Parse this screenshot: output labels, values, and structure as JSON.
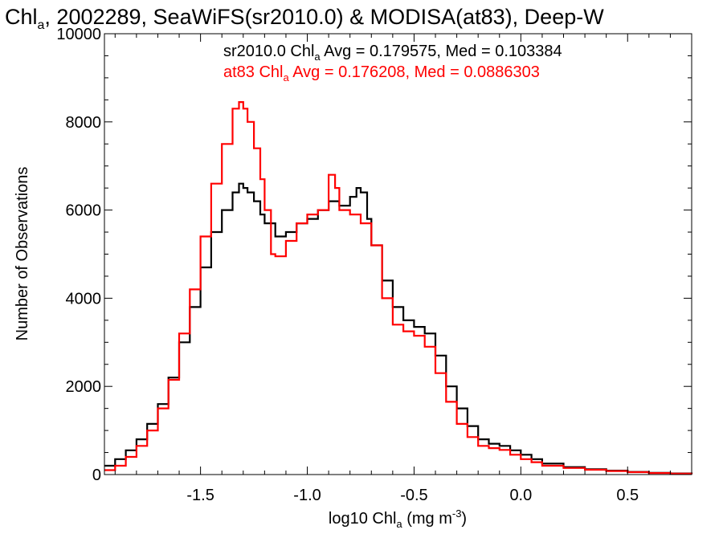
{
  "chart_data": {
    "type": "line",
    "title_main": "Chl",
    "title_sub": "a",
    "title_rest": ", 2002289, SeaWiFS(sr2010.0) & MODISA(at83), Deep-W",
    "xlabel_main": "log10 Chl",
    "xlabel_sub": "a",
    "xlabel_rest": " (mg m",
    "xlabel_sup": "-3",
    "xlabel_close": ")",
    "ylabel": "Number of Observations",
    "xlim": [
      -1.95,
      0.8
    ],
    "ylim": [
      0,
      10000
    ],
    "x_ticks": [
      -1.5,
      -1.0,
      -0.5,
      0.0,
      0.5
    ],
    "x_tick_labels": [
      "-1.5",
      "-1.0",
      "-0.5",
      "0.0",
      "0.5"
    ],
    "y_ticks": [
      0,
      2000,
      4000,
      6000,
      8000,
      10000
    ],
    "y_tick_labels": [
      "0",
      "2000",
      "4000",
      "6000",
      "8000",
      "10000"
    ],
    "grid": false,
    "legend_placement": "top-center",
    "series": [
      {
        "name": "sr2010.0",
        "color": "#000000",
        "legend_pre": "sr2010.0 Chl",
        "legend_sub": "a",
        "legend_post": " Avg = 0.179575, Med = 0.103384",
        "x": [
          -1.95,
          -1.9,
          -1.85,
          -1.8,
          -1.75,
          -1.7,
          -1.65,
          -1.6,
          -1.55,
          -1.5,
          -1.45,
          -1.4,
          -1.35,
          -1.32,
          -1.3,
          -1.28,
          -1.25,
          -1.22,
          -1.2,
          -1.15,
          -1.1,
          -1.05,
          -1.0,
          -0.95,
          -0.9,
          -0.85,
          -0.8,
          -0.77,
          -0.75,
          -0.72,
          -0.7,
          -0.65,
          -0.6,
          -0.55,
          -0.5,
          -0.45,
          -0.4,
          -0.35,
          -0.3,
          -0.25,
          -0.2,
          -0.15,
          -0.1,
          -0.05,
          0.0,
          0.05,
          0.1,
          0.2,
          0.3,
          0.4,
          0.5,
          0.6,
          0.7,
          0.8
        ],
        "y": [
          200,
          350,
          550,
          800,
          1150,
          1600,
          2200,
          3000,
          3800,
          4700,
          5500,
          6000,
          6400,
          6600,
          6500,
          6400,
          6200,
          5900,
          5700,
          5400,
          5500,
          5700,
          5800,
          6000,
          6200,
          6100,
          6300,
          6500,
          6400,
          5800,
          5200,
          4400,
          3800,
          3500,
          3350,
          3200,
          2700,
          2000,
          1500,
          1100,
          800,
          700,
          650,
          550,
          450,
          350,
          250,
          170,
          120,
          90,
          60,
          40,
          25,
          15
        ]
      },
      {
        "name": "at83",
        "color": "#ff0000",
        "legend_pre": "at83 Chl",
        "legend_sub": "a",
        "legend_post": " Avg = 0.176208, Med = 0.0886303",
        "x": [
          -1.95,
          -1.9,
          -1.85,
          -1.8,
          -1.75,
          -1.7,
          -1.65,
          -1.6,
          -1.55,
          -1.5,
          -1.45,
          -1.4,
          -1.35,
          -1.32,
          -1.3,
          -1.28,
          -1.25,
          -1.22,
          -1.2,
          -1.17,
          -1.15,
          -1.1,
          -1.05,
          -1.0,
          -0.95,
          -0.9,
          -0.87,
          -0.85,
          -0.8,
          -0.75,
          -0.7,
          -0.65,
          -0.6,
          -0.55,
          -0.5,
          -0.45,
          -0.4,
          -0.35,
          -0.3,
          -0.25,
          -0.2,
          -0.15,
          -0.1,
          -0.05,
          0.0,
          0.05,
          0.1,
          0.2,
          0.3,
          0.4,
          0.5,
          0.6,
          0.7,
          0.8
        ],
        "y": [
          100,
          200,
          400,
          650,
          1000,
          1500,
          2150,
          3200,
          4200,
          5400,
          6600,
          7500,
          8300,
          8450,
          8300,
          8000,
          7400,
          6700,
          6000,
          5000,
          4950,
          5300,
          5700,
          5900,
          6000,
          6800,
          6500,
          6000,
          5900,
          5700,
          5200,
          4000,
          3400,
          3250,
          3150,
          2900,
          2300,
          1650,
          1150,
          850,
          650,
          600,
          560,
          450,
          350,
          280,
          200,
          150,
          110,
          80,
          55,
          35,
          20,
          10
        ]
      }
    ]
  }
}
